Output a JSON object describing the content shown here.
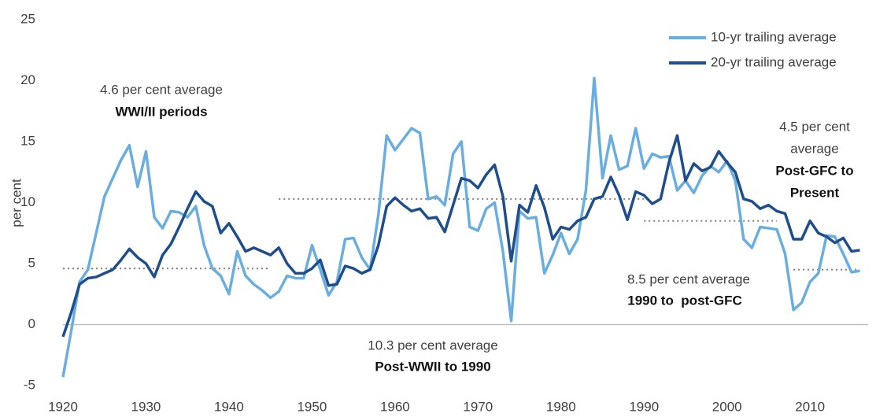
{
  "chart_data": {
    "type": "line",
    "ylabel": "per cent",
    "xlim": [
      1920,
      2017
    ],
    "xticks": [
      1920,
      1930,
      1940,
      1950,
      1960,
      1970,
      1980,
      1990,
      2000,
      2010
    ],
    "ylim": [
      -5,
      25
    ],
    "yticks": [
      -5,
      0,
      5,
      10,
      15,
      20,
      25
    ],
    "legend": "top-right",
    "x": [
      1920,
      1921,
      1922,
      1923,
      1924,
      1925,
      1926,
      1927,
      1928,
      1929,
      1930,
      1931,
      1932,
      1933,
      1934,
      1935,
      1936,
      1937,
      1938,
      1939,
      1940,
      1941,
      1942,
      1943,
      1944,
      1945,
      1946,
      1947,
      1948,
      1949,
      1950,
      1951,
      1952,
      1953,
      1954,
      1955,
      1956,
      1957,
      1958,
      1959,
      1960,
      1961,
      1962,
      1963,
      1964,
      1965,
      1966,
      1967,
      1968,
      1969,
      1970,
      1971,
      1972,
      1973,
      1974,
      1975,
      1976,
      1977,
      1978,
      1979,
      1980,
      1981,
      1982,
      1983,
      1984,
      1985,
      1986,
      1987,
      1988,
      1989,
      1990,
      1991,
      1992,
      1993,
      1994,
      1995,
      1996,
      1997,
      1998,
      1999,
      2000,
      2001,
      2002,
      2003,
      2004,
      2005,
      2006,
      2007,
      2008,
      2009,
      2010,
      2011,
      2012,
      2013,
      2014,
      2015,
      2016
    ],
    "series": [
      {
        "name": "10-yr trailing average",
        "color": "#6aaee0",
        "values": [
          -4.3,
          -0.5,
          3.5,
          4.5,
          7.5,
          10.5,
          12,
          13.5,
          14.7,
          11.3,
          14.2,
          8.8,
          7.9,
          9.3,
          9.2,
          8.8,
          9.7,
          6.5,
          4.6,
          4,
          2.5,
          6,
          4,
          3.3,
          2.8,
          2.2,
          2.7,
          4,
          3.8,
          3.8,
          6.5,
          4.5,
          2.4,
          3.5,
          7,
          7.1,
          5.5,
          4.5,
          9,
          15.5,
          14.3,
          15.2,
          16.1,
          15.7,
          10.3,
          10.5,
          9.8,
          14,
          15,
          8,
          7.7,
          9.5,
          10,
          6,
          0.3,
          9.3,
          8.7,
          8.8,
          4.2,
          5.7,
          7.5,
          5.8,
          7,
          11,
          20.2,
          12,
          15.5,
          12.7,
          13,
          16.1,
          12.8,
          14,
          13.7,
          13.8,
          11,
          11.8,
          10.8,
          12.2,
          13,
          12.5,
          13.4,
          11.8,
          7,
          6.3,
          8,
          7.9,
          7.8,
          5.8,
          1.2,
          1.8,
          3.5,
          4.2,
          7.3,
          7.2,
          5.8,
          4.3,
          4.4
        ]
      },
      {
        "name": "20-yr trailing average",
        "color": "#1f4e8c",
        "values": [
          -1,
          1,
          3.3,
          3.8,
          3.9,
          4.2,
          4.5,
          5.3,
          6.2,
          5.5,
          5,
          3.9,
          5.7,
          6.6,
          8,
          9.5,
          10.9,
          10.1,
          9.7,
          7.5,
          8.3,
          7.2,
          6,
          6.3,
          6,
          5.7,
          6.3,
          5,
          4.2,
          4.2,
          4.6,
          5.3,
          3.2,
          3.3,
          4.8,
          4.6,
          4.2,
          4.5,
          6.5,
          9.7,
          10.4,
          9.8,
          9.3,
          9.5,
          8.7,
          8.8,
          7.6,
          9.8,
          12,
          11.8,
          11.2,
          12.3,
          13.1,
          10.5,
          5.2,
          9.8,
          9.2,
          11.4,
          9.6,
          7,
          8,
          7.8,
          8.5,
          8.8,
          10.3,
          10.5,
          12.1,
          10.6,
          8.6,
          10.9,
          10.6,
          9.9,
          10.3,
          13.3,
          15.5,
          11.8,
          13.2,
          12.6,
          12.9,
          14.2,
          13.3,
          12.5,
          10.3,
          10.1,
          9.5,
          9.8,
          9.3,
          9.1,
          7,
          7,
          8.5,
          7.5,
          7.2,
          6.7,
          7.1,
          6,
          6.1
        ]
      }
    ],
    "averages": [
      {
        "value": 4.6,
        "start": 1920,
        "end": 1945,
        "label": [
          "4.6 per cent average",
          "WWI/II periods"
        ]
      },
      {
        "value": 10.3,
        "start": 1946,
        "end": 1990,
        "label": [
          "10.3 per cent average",
          "Post-WWII to 1990"
        ]
      },
      {
        "value": 8.5,
        "start": 1990,
        "end": 2006,
        "label": [
          "8.5 per cent average",
          "1990 to  post-GFC"
        ]
      },
      {
        "value": 4.5,
        "start": 2008,
        "end": 2016,
        "label": [
          "4.5 per cent",
          "average",
          "Post-GFC to",
          "Present"
        ]
      }
    ]
  }
}
